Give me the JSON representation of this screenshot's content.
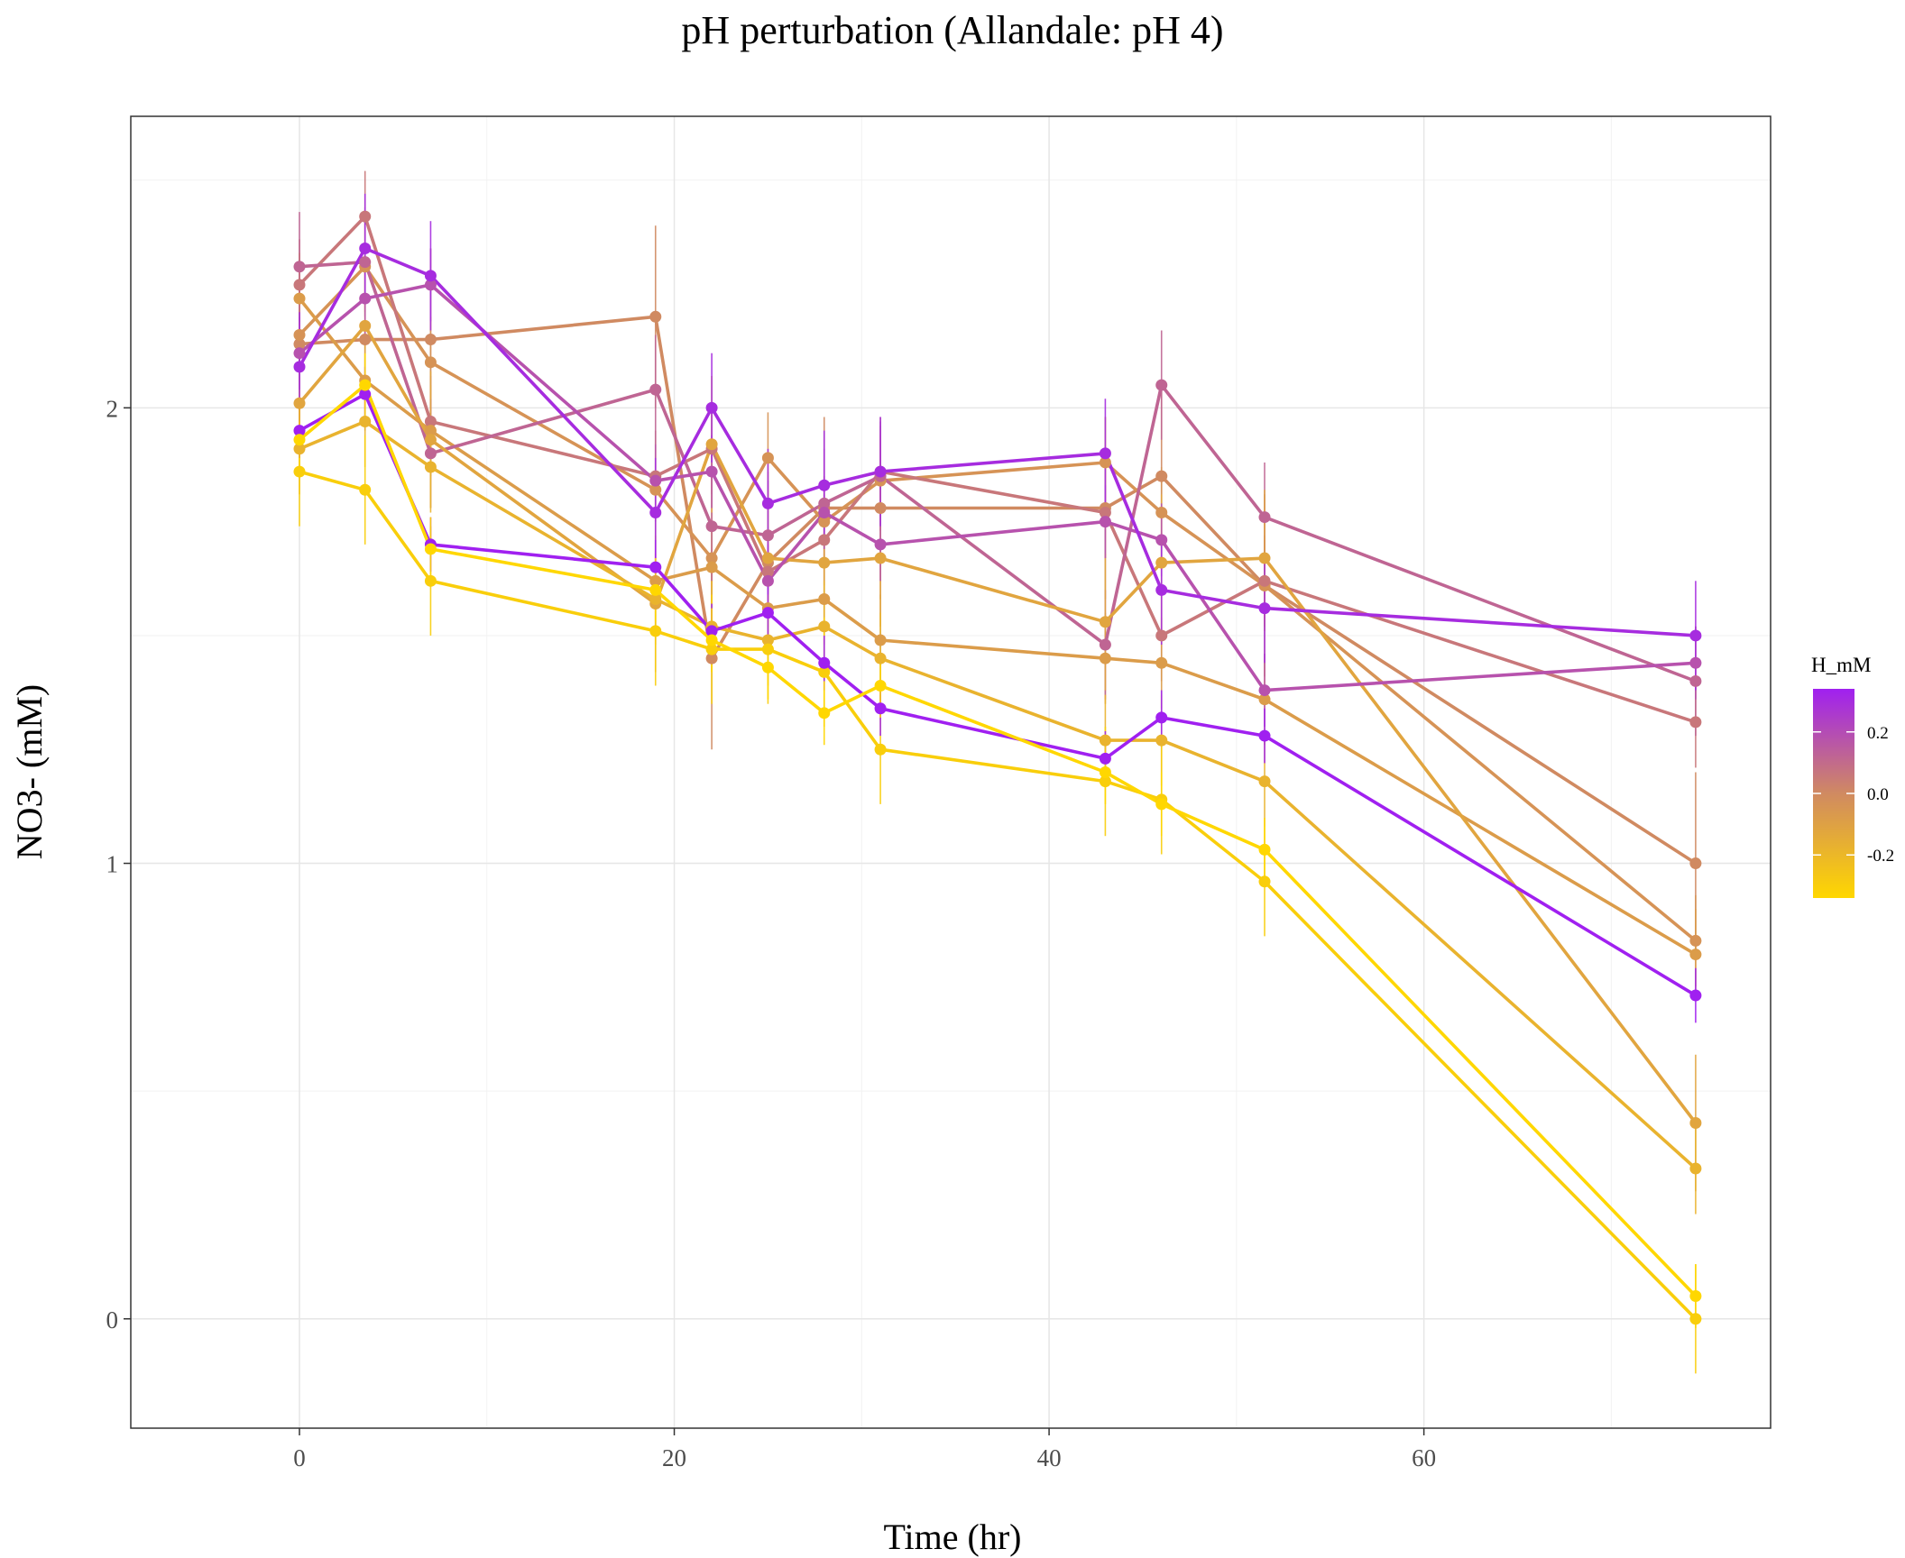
{
  "chart_data": {
    "type": "line",
    "title": "pH perturbation (Allandale: pH 4)",
    "xlabel": "Time (hr)",
    "ylabel": "NO3- (mM)",
    "xlim": [
      -9,
      78.5
    ],
    "ylim": [
      -0.24,
      2.64
    ],
    "x_ticks": [
      0,
      20,
      40,
      60
    ],
    "x_tick_labels": [
      "0",
      "20",
      "40",
      "60"
    ],
    "y_ticks": [
      0,
      1,
      2
    ],
    "y_tick_labels": [
      "0",
      "1",
      "2"
    ],
    "grid": true,
    "legend": {
      "title": "H_mM",
      "position": "right",
      "type": "colorbar",
      "range": [
        -0.34,
        0.34
      ],
      "ticks": [
        0.2,
        0.0,
        -0.2
      ],
      "tick_labels": [
        "0.2",
        "0.0",
        "-0.2"
      ],
      "colors": {
        "low": "#FFD700",
        "mid": "#D08A61",
        "high": "#A020F0"
      }
    },
    "x": [
      0,
      3.5,
      7,
      19,
      22,
      25,
      28,
      31,
      43,
      46,
      51.5,
      74.5
    ],
    "series": [
      {
        "h": 0.34,
        "values": [
          1.95,
          2.03,
          1.7,
          1.65,
          1.51,
          1.55,
          1.44,
          1.34,
          1.23,
          1.32,
          1.28,
          0.71
        ],
        "err": 0.06
      },
      {
        "h": -0.34,
        "values": [
          1.93,
          2.05,
          1.69,
          1.6,
          1.49,
          1.43,
          1.33,
          1.39,
          1.2,
          1.13,
          1.03,
          0.05
        ],
        "err": 0.07
      },
      {
        "h": -0.3,
        "values": [
          1.86,
          1.82,
          1.62,
          1.51,
          1.47,
          1.47,
          1.42,
          1.25,
          1.18,
          1.14,
          0.96,
          0.0
        ],
        "err": 0.12
      },
      {
        "h": 0.3,
        "values": [
          2.09,
          2.35,
          2.29,
          1.77,
          2.0,
          1.79,
          1.83,
          1.86,
          1.9,
          1.6,
          1.56,
          1.5
        ],
        "err": 0.12
      },
      {
        "h": 0.18,
        "values": [
          2.12,
          2.24,
          2.27,
          1.84,
          1.86,
          1.62,
          1.77,
          1.7,
          1.75,
          1.71,
          1.38,
          1.44
        ],
        "err": 0.08
      },
      {
        "h": 0.12,
        "values": [
          2.31,
          2.32,
          1.9,
          2.04,
          1.74,
          1.72,
          1.79,
          1.85,
          1.48,
          2.05,
          1.76,
          1.4
        ],
        "err": 0.12
      },
      {
        "h": 0.06,
        "values": [
          2.27,
          2.42,
          1.97,
          1.85,
          1.91,
          1.64,
          1.71,
          1.86,
          1.77,
          1.5,
          1.62,
          1.31
        ],
        "err": 0.1
      },
      {
        "h": 0.0,
        "values": [
          2.14,
          2.15,
          2.15,
          2.2,
          1.45,
          1.66,
          1.78,
          1.78,
          1.78,
          1.85,
          1.61,
          1.0
        ],
        "err": 0.2
      },
      {
        "h": -0.04,
        "values": [
          2.16,
          2.31,
          2.1,
          1.82,
          1.67,
          1.89,
          1.75,
          1.84,
          1.88,
          1.77,
          1.61,
          0.83
        ],
        "err": 0.1
      },
      {
        "h": -0.08,
        "values": [
          2.24,
          2.06,
          1.95,
          1.62,
          1.65,
          1.56,
          1.58,
          1.49,
          1.45,
          1.44,
          1.36,
          0.8
        ],
        "err": 0.1
      },
      {
        "h": -0.12,
        "values": [
          2.01,
          2.18,
          1.93,
          1.57,
          1.92,
          1.67,
          1.66,
          1.67,
          1.53,
          1.66,
          1.67,
          0.43
        ],
        "err": 0.15
      },
      {
        "h": -0.18,
        "values": [
          1.91,
          1.97,
          1.87,
          1.58,
          1.52,
          1.49,
          1.52,
          1.45,
          1.27,
          1.27,
          1.18,
          0.33
        ],
        "err": 0.1
      }
    ]
  }
}
